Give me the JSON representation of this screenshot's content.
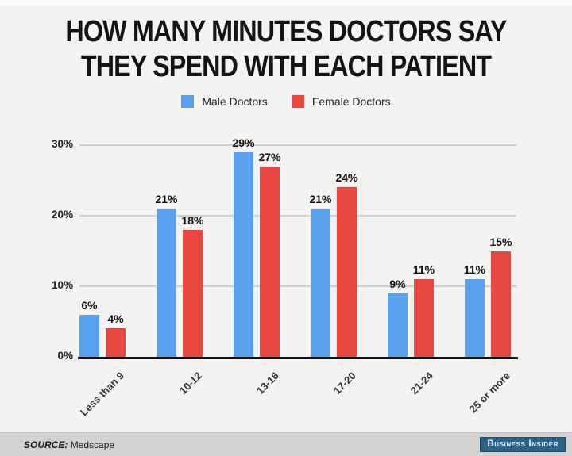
{
  "title": {
    "line1": "HOW MANY MINUTES DOCTORS SAY",
    "line2": "THEY SPEND WITH EACH PATIENT"
  },
  "legend": {
    "items": [
      {
        "label": "Male Doctors",
        "color": "#58a1ed"
      },
      {
        "label": "Female Doctors",
        "color": "#e8473f"
      }
    ]
  },
  "chart_data": {
    "type": "bar",
    "title": "HOW MANY MINUTES DOCTORS SAY THEY SPEND WITH EACH PATIENT",
    "categories": [
      "Less than 9",
      "10-12",
      "13-16",
      "17-20",
      "21-24",
      "25 or more"
    ],
    "series": [
      {
        "name": "Male Doctors",
        "color": "#58a1ed",
        "values": [
          6,
          21,
          29,
          21,
          9,
          11
        ]
      },
      {
        "name": "Female Doctors",
        "color": "#e8473f",
        "values": [
          4,
          18,
          27,
          24,
          11,
          15
        ]
      }
    ],
    "value_suffix": "%",
    "yticks": [
      0,
      10,
      20,
      30
    ],
    "ytick_suffix": "%",
    "ylim": [
      0,
      32
    ],
    "grid": true,
    "legend_position": "top",
    "colors": {
      "background": "#f4f3f1",
      "gridline": "#cfcfcc",
      "axis": "#141414"
    }
  },
  "footer": {
    "source_label": "SOURCE:",
    "source_value": "Medscape",
    "brand": "Business Insider",
    "brand_bg": "#27638b"
  }
}
